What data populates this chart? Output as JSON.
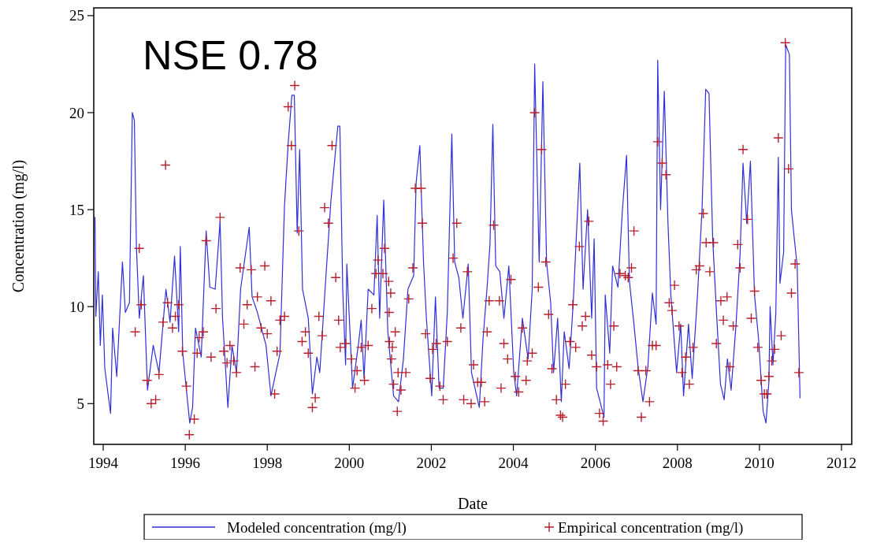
{
  "chart_data": {
    "type": "line",
    "xlabel": "Date",
    "ylabel": "Concentration (mg/l)",
    "annotations": [
      "NSE 0.78"
    ],
    "xlim": [
      1993.77,
      2012.25
    ],
    "xticks": [
      1994,
      1996,
      1998,
      2000,
      2002,
      2004,
      2006,
      2008,
      2010,
      2012
    ],
    "ylim": [
      2.9,
      25.4
    ],
    "yticks": [
      5,
      10,
      15,
      20,
      25
    ],
    "grid": false,
    "legend": "bottom",
    "series": [
      {
        "name": "Modeled concentration (mg/l)",
        "color": "#2f2fd8",
        "marker": "none",
        "line_style": "solid",
        "x": [
          1993.8,
          1993.82,
          1993.88,
          1993.93,
          1993.98,
          1994.04,
          1994.18,
          1994.23,
          1994.33,
          1994.47,
          1994.54,
          1994.64,
          1994.71,
          1994.76,
          1994.81,
          1994.88,
          1994.98,
          1995.08,
          1995.22,
          1995.36,
          1995.53,
          1995.63,
          1995.74,
          1995.84,
          1995.88,
          1995.94,
          1996.11,
          1996.18,
          1996.25,
          1996.39,
          1996.51,
          1996.6,
          1996.73,
          1996.85,
          1996.91,
          1997.04,
          1997.14,
          1997.25,
          1997.35,
          1997.56,
          1997.63,
          1997.76,
          1997.97,
          1998.09,
          1998.31,
          1998.42,
          1998.51,
          1998.6,
          1998.66,
          1998.73,
          1998.79,
          1998.86,
          1999.0,
          1999.1,
          1999.21,
          1999.28,
          1999.41,
          1999.55,
          1999.72,
          1999.77,
          1999.84,
          1999.91,
          1999.94,
          2000.08,
          2000.22,
          2000.29,
          2000.36,
          2000.46,
          2000.6,
          2000.68,
          2000.74,
          2000.84,
          2000.94,
          2001.08,
          2001.2,
          2001.32,
          2001.43,
          2001.57,
          2001.63,
          2001.72,
          2001.81,
          2001.88,
          2002.01,
          2002.1,
          2002.19,
          2002.29,
          2002.39,
          2002.5,
          2002.57,
          2002.67,
          2002.77,
          2002.9,
          2002.98,
          2003.17,
          2003.26,
          2003.36,
          2003.43,
          2003.5,
          2003.57,
          2003.67,
          2003.77,
          2003.89,
          2004.01,
          2004.08,
          2004.22,
          2004.36,
          2004.46,
          2004.52,
          2004.63,
          2004.72,
          2004.81,
          2004.91,
          2004.98,
          2005.08,
          2005.17,
          2005.24,
          2005.36,
          2005.46,
          2005.62,
          2005.7,
          2005.81,
          2005.91,
          2005.97,
          2006.03,
          2006.21,
          2006.24,
          2006.35,
          2006.42,
          2006.55,
          2006.66,
          2006.76,
          2006.83,
          2006.94,
          2007.04,
          2007.16,
          2007.28,
          2007.39,
          2007.48,
          2007.52,
          2007.59,
          2007.68,
          2007.77,
          2007.84,
          2007.98,
          2008.08,
          2008.15,
          2008.27,
          2008.36,
          2008.49,
          2008.6,
          2008.69,
          2008.77,
          2008.86,
          2008.95,
          2009.05,
          2009.14,
          2009.22,
          2009.31,
          2009.43,
          2009.53,
          2009.6,
          2009.69,
          2009.78,
          2009.88,
          2009.98,
          2010.09,
          2010.16,
          2010.23,
          2010.26,
          2010.33,
          2010.4,
          2010.46,
          2010.5,
          2010.59,
          2010.64,
          2010.73,
          2010.78,
          2010.85,
          2010.92,
          2010.99
        ],
        "values": [
          14.6,
          9.5,
          11.8,
          8.0,
          10.6,
          6.8,
          4.5,
          8.9,
          6.4,
          12.3,
          9.7,
          10.2,
          20.0,
          19.6,
          13.1,
          9.4,
          11.6,
          5.7,
          8.0,
          6.6,
          10.9,
          9.2,
          12.6,
          8.7,
          13.1,
          7.6,
          4.0,
          4.8,
          8.9,
          7.4,
          13.9,
          11.0,
          10.9,
          14.4,
          9.4,
          4.8,
          8.0,
          6.6,
          10.9,
          14.1,
          10.5,
          9.7,
          8.0,
          5.4,
          7.6,
          15.2,
          18.4,
          20.9,
          20.9,
          13.8,
          18.1,
          10.9,
          9.4,
          5.5,
          7.4,
          6.6,
          10.9,
          15.4,
          19.3,
          19.3,
          10.9,
          7.0,
          12.2,
          5.8,
          8.0,
          9.3,
          6.3,
          10.9,
          10.6,
          14.7,
          9.4,
          15.5,
          8.7,
          5.4,
          5.1,
          7.3,
          10.9,
          11.6,
          16.4,
          18.3,
          12.3,
          9.4,
          5.4,
          10.5,
          5.8,
          5.8,
          9.7,
          18.9,
          12.3,
          11.5,
          9.4,
          12.2,
          6.6,
          4.8,
          8.3,
          11.0,
          13.2,
          19.4,
          12.1,
          11.8,
          9.4,
          12.1,
          6.6,
          5.4,
          9.4,
          7.3,
          10.9,
          22.5,
          12.3,
          21.6,
          12.3,
          10.2,
          6.6,
          9.4,
          5.1,
          8.7,
          6.8,
          10.2,
          17.4,
          10.9,
          15.0,
          9.4,
          13.5,
          5.8,
          4.3,
          10.6,
          7.6,
          12.1,
          11.0,
          15.0,
          17.8,
          11.3,
          9.1,
          6.9,
          5.1,
          6.9,
          10.7,
          9.1,
          22.7,
          15.0,
          21.1,
          14.3,
          10.6,
          6.6,
          9.1,
          5.4,
          9.1,
          6.3,
          10.6,
          15.0,
          21.2,
          21.0,
          13.5,
          9.8,
          6.0,
          5.2,
          7.3,
          5.7,
          9.1,
          12.8,
          17.4,
          14.3,
          17.5,
          10.6,
          8.3,
          4.6,
          4.0,
          6.1,
          10.0,
          7.0,
          9.7,
          17.7,
          11.2,
          12.8,
          23.5,
          23.0,
          15.0,
          13.5,
          12.1,
          5.3
        ]
      },
      {
        "name": "Empirical concentration (mg/l)",
        "type": "scatter",
        "color": "#b8202e",
        "marker": "cross",
        "x": [
          1998.67,
          1998.51,
          1998.59,
          1999.58,
          1995.52,
          1999.4,
          1999.49,
          1996.85,
          1996.51,
          1998.77,
          1994.88,
          1997.34,
          1997.61,
          1997.94,
          1999.67,
          1994.93,
          1995.57,
          1995.84,
          1995.76,
          1998.09,
          1997.51,
          1997.76,
          1996.75,
          1995.46,
          1995.69,
          1994.78,
          1997.43,
          1998.42,
          1998.31,
          1999.26,
          1999.74,
          1996.44,
          1996.34,
          1997.85,
          1998.0,
          1998.93,
          1999.34,
          1995.93,
          1996.29,
          1996.63,
          1997.09,
          1996.94,
          1997.18,
          1997.02,
          1998.24,
          1998.85,
          1999.0,
          1999.78,
          1995.07,
          1995.36,
          1997.25,
          1997.7,
          1998.18,
          1996.03,
          1995.28,
          1995.17,
          1999.17,
          1999.1,
          1996.22,
          1996.1,
          1999.91,
          2000.05,
          2000.19,
          2000.14,
          2000.29,
          2000.46,
          2000.37,
          2000.55,
          2000.65,
          2000.7,
          2000.82,
          2000.86,
          2000.96,
          2001.01,
          2000.97,
          2000.98,
          2001.05,
          2001.12,
          2001.03,
          2001.19,
          2001.08,
          2001.26,
          2001.17,
          2001.38,
          2001.45,
          2001.55,
          2001.61,
          2001.75,
          2001.78,
          2001.86,
          2001.97,
          2002.03,
          2002.12,
          2002.21,
          2002.29,
          2002.39,
          2002.53,
          2002.62,
          2002.72,
          2002.79,
          2002.88,
          2002.97,
          2003.03,
          2003.13,
          2003.22,
          2003.3,
          2003.36,
          2003.41,
          2003.52,
          2003.66,
          2003.7,
          2003.77,
          2003.86,
          2003.94,
          2004.05,
          2004.13,
          2004.22,
          2004.31,
          2004.34,
          2004.46,
          2004.52,
          2004.69,
          2004.61,
          2004.79,
          2004.86,
          2004.94,
          2005.05,
          2005.15,
          2005.2,
          2005.27,
          2005.38,
          2005.45,
          2005.52,
          2005.61,
          2005.68,
          2005.76,
          2005.84,
          2005.91,
          2006.03,
          2006.3,
          2006.52,
          2006.37,
          2006.45,
          2006.1,
          2006.19,
          2006.6,
          2006.73,
          2006.8,
          2006.88,
          2006.94,
          2007.04,
          2007.23,
          2007.12,
          2007.32,
          2007.39,
          2007.48,
          2007.52,
          2007.63,
          2007.72,
          2007.93,
          2007.8,
          2007.87,
          2008.04,
          2008.2,
          2008.11,
          2008.29,
          2008.38,
          2008.46,
          2008.54,
          2008.63,
          2008.7,
          2008.88,
          2008.79,
          2008.95,
          2009.06,
          2009.21,
          2009.12,
          2009.36,
          2009.28,
          2009.47,
          2009.53,
          2009.6,
          2009.71,
          2009.88,
          2009.8,
          2009.96,
          2010.04,
          2010.23,
          2010.12,
          2010.18,
          2010.3,
          2010.37,
          2010.53,
          2010.46,
          2010.63,
          2010.71,
          2010.78,
          2010.87,
          2010.96
        ],
        "values": [
          21.4,
          20.3,
          18.3,
          18.3,
          17.3,
          15.1,
          14.3,
          14.6,
          13.4,
          13.9,
          13.0,
          12.0,
          11.9,
          12.1,
          11.5,
          10.1,
          10.2,
          10.1,
          9.5,
          10.3,
          10.1,
          10.5,
          9.9,
          9.2,
          8.9,
          8.7,
          9.1,
          9.5,
          9.3,
          9.5,
          9.3,
          8.7,
          8.4,
          8.9,
          8.6,
          8.7,
          8.5,
          7.7,
          7.6,
          7.4,
          8.0,
          7.7,
          7.2,
          7.1,
          7.7,
          8.2,
          7.6,
          7.9,
          6.2,
          6.5,
          6.6,
          6.9,
          5.5,
          5.9,
          5.2,
          5.0,
          5.3,
          4.8,
          4.2,
          3.4,
          8.1,
          7.3,
          6.7,
          5.8,
          7.9,
          8.0,
          6.2,
          9.9,
          11.7,
          12.4,
          11.7,
          13.0,
          11.3,
          10.7,
          9.7,
          8.2,
          7.9,
          8.7,
          7.3,
          6.6,
          6.0,
          5.7,
          4.6,
          6.6,
          10.4,
          12.0,
          16.1,
          16.1,
          14.3,
          8.6,
          6.3,
          7.8,
          8.1,
          5.9,
          5.2,
          8.2,
          12.5,
          14.3,
          8.9,
          5.2,
          11.8,
          5.0,
          7.0,
          6.1,
          6.1,
          5.1,
          8.7,
          10.3,
          14.2,
          10.3,
          5.8,
          8.1,
          7.3,
          11.4,
          6.4,
          5.6,
          8.9,
          6.2,
          7.2,
          7.6,
          20.0,
          18.1,
          11.0,
          12.3,
          9.6,
          6.8,
          5.2,
          4.4,
          4.3,
          6.0,
          8.2,
          10.1,
          7.9,
          13.1,
          9.0,
          9.5,
          14.4,
          7.5,
          6.9,
          7.0,
          6.9,
          6.0,
          9.0,
          4.5,
          4.1,
          11.7,
          11.6,
          11.5,
          12.0,
          13.9,
          6.7,
          6.7,
          4.3,
          5.1,
          8.0,
          8.0,
          18.5,
          17.4,
          16.8,
          11.1,
          10.2,
          9.8,
          9.0,
          7.4,
          6.6,
          6.0,
          7.9,
          11.9,
          12.1,
          14.8,
          13.3,
          13.3,
          11.8,
          8.1,
          10.3,
          10.5,
          9.3,
          9.0,
          6.9,
          13.2,
          12.0,
          18.1,
          14.5,
          10.8,
          9.4,
          7.9,
          6.2,
          6.4,
          5.5,
          5.5,
          7.2,
          7.8,
          8.5,
          18.7,
          23.6,
          17.1,
          10.7,
          12.2,
          6.6
        ]
      }
    ]
  }
}
